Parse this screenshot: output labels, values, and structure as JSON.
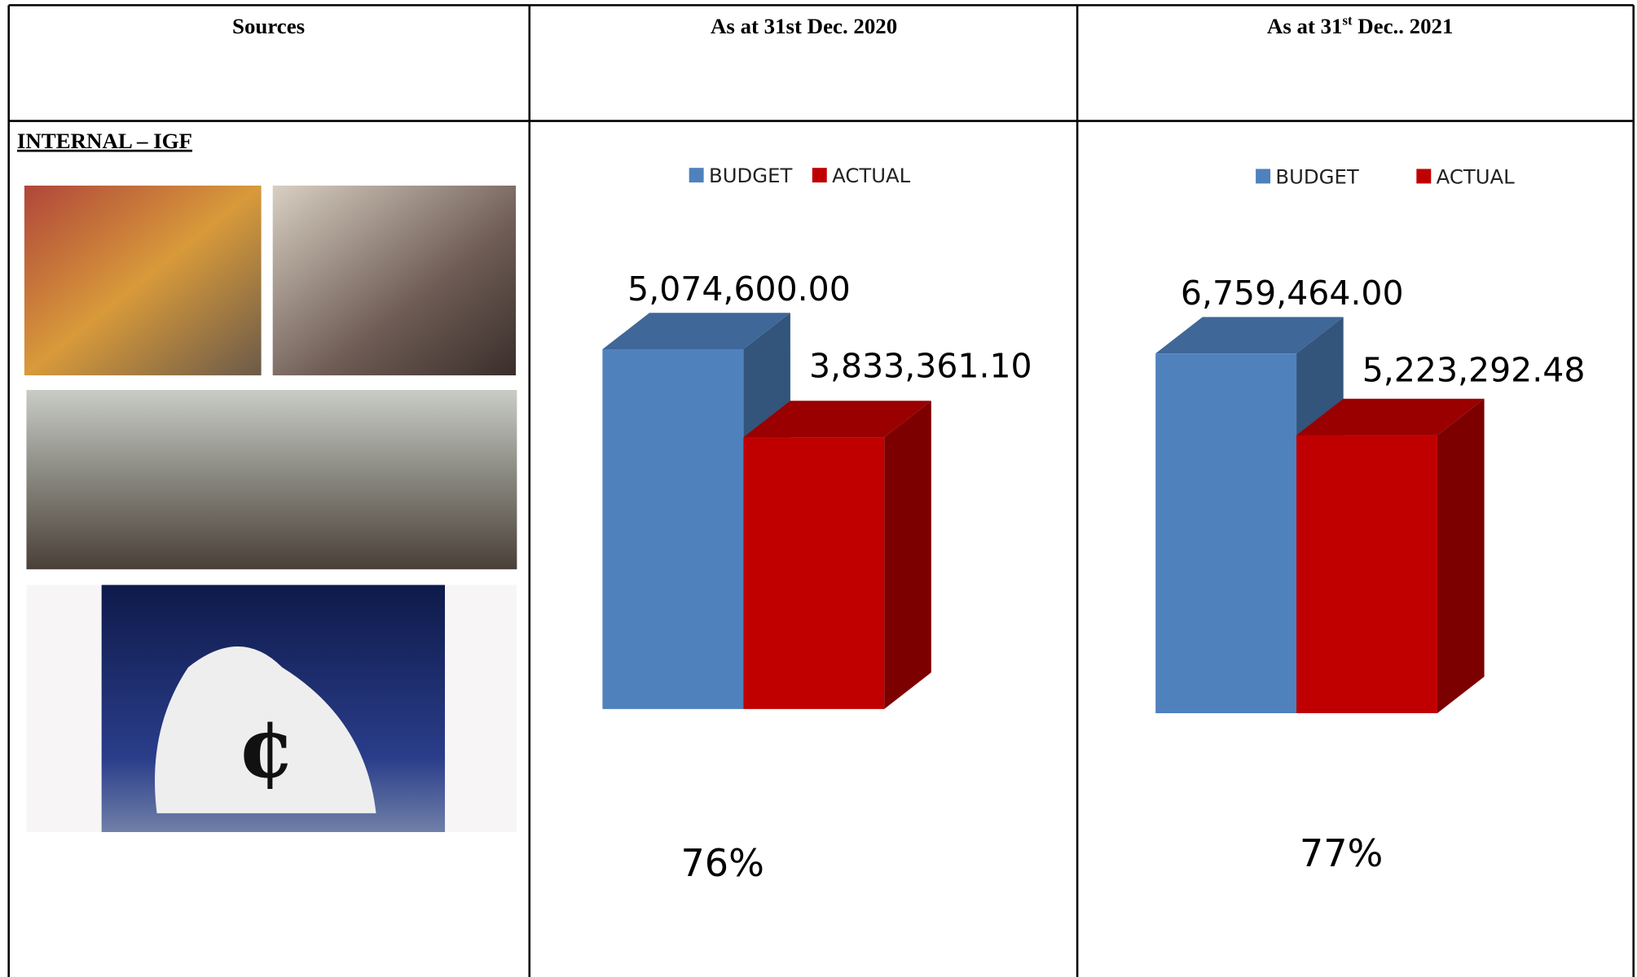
{
  "table": {
    "header": [
      "Sources",
      [
        "As at 31st Dec. 2020"
      ],
      [
        "As at 31",
        "st",
        " Dec.. 2021"
      ]
    ],
    "row_label": "INTERNAL – IGF"
  },
  "chart_data": [
    {
      "type": "bar3d",
      "series": [
        {
          "name": "BUDGET",
          "color": "#4f81bd",
          "values": [
            5074600
          ],
          "value_labels": [
            "5,074,600.00"
          ]
        },
        {
          "name": "ACTUAL",
          "color": "#c00000",
          "values": [
            3833361.1
          ],
          "value_labels": [
            "3,833,361.10"
          ]
        }
      ],
      "annotation": "76%"
    },
    {
      "type": "bar3d",
      "series": [
        {
          "name": "BUDGET",
          "color": "#4f81bd",
          "values": [
            6759464
          ],
          "value_labels": [
            "6,759,464.00"
          ]
        },
        {
          "name": "ACTUAL",
          "color": "#c00000",
          "values": [
            5223292.48
          ],
          "value_labels": [
            "5,223,292.48"
          ]
        }
      ],
      "annotation": "77%"
    }
  ]
}
